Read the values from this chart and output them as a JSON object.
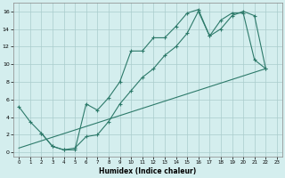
{
  "xlabel": "Humidex (Indice chaleur)",
  "background_color": "#d4eeee",
  "grid_color": "#aacccc",
  "line_color": "#2d7a6a",
  "xlim": [
    -0.5,
    23.5
  ],
  "ylim": [
    -0.5,
    17.0
  ],
  "xticks": [
    0,
    1,
    2,
    3,
    4,
    5,
    6,
    7,
    8,
    9,
    10,
    11,
    12,
    13,
    14,
    15,
    16,
    17,
    18,
    19,
    20,
    21,
    22,
    23
  ],
  "yticks": [
    0,
    2,
    4,
    6,
    8,
    10,
    12,
    14,
    16
  ],
  "line1_x": [
    0,
    1,
    2,
    3,
    4,
    5,
    6,
    7,
    8,
    9,
    10,
    11,
    12,
    13,
    14,
    15,
    16,
    17,
    18,
    19,
    20,
    21,
    22
  ],
  "line1_y": [
    5.2,
    3.5,
    2.2,
    0.7,
    0.3,
    0.3,
    5.5,
    4.8,
    6.2,
    8.0,
    11.5,
    11.5,
    13.0,
    13.0,
    14.3,
    15.8,
    16.2,
    13.2,
    15.0,
    15.8,
    15.8,
    10.5,
    9.5
  ],
  "line2_x": [
    2,
    3,
    4,
    5,
    6,
    7,
    8,
    9,
    10,
    11,
    12,
    13,
    14,
    15,
    16,
    17,
    18,
    19,
    20,
    21,
    22
  ],
  "line2_y": [
    2.2,
    0.7,
    0.3,
    0.5,
    1.8,
    2.0,
    3.5,
    5.5,
    7.0,
    8.5,
    9.5,
    11.0,
    12.0,
    13.5,
    16.0,
    13.2,
    14.0,
    15.5,
    16.0,
    15.5,
    9.5
  ],
  "line3_x": [
    0,
    22
  ],
  "line3_y": [
    0.5,
    9.5
  ]
}
